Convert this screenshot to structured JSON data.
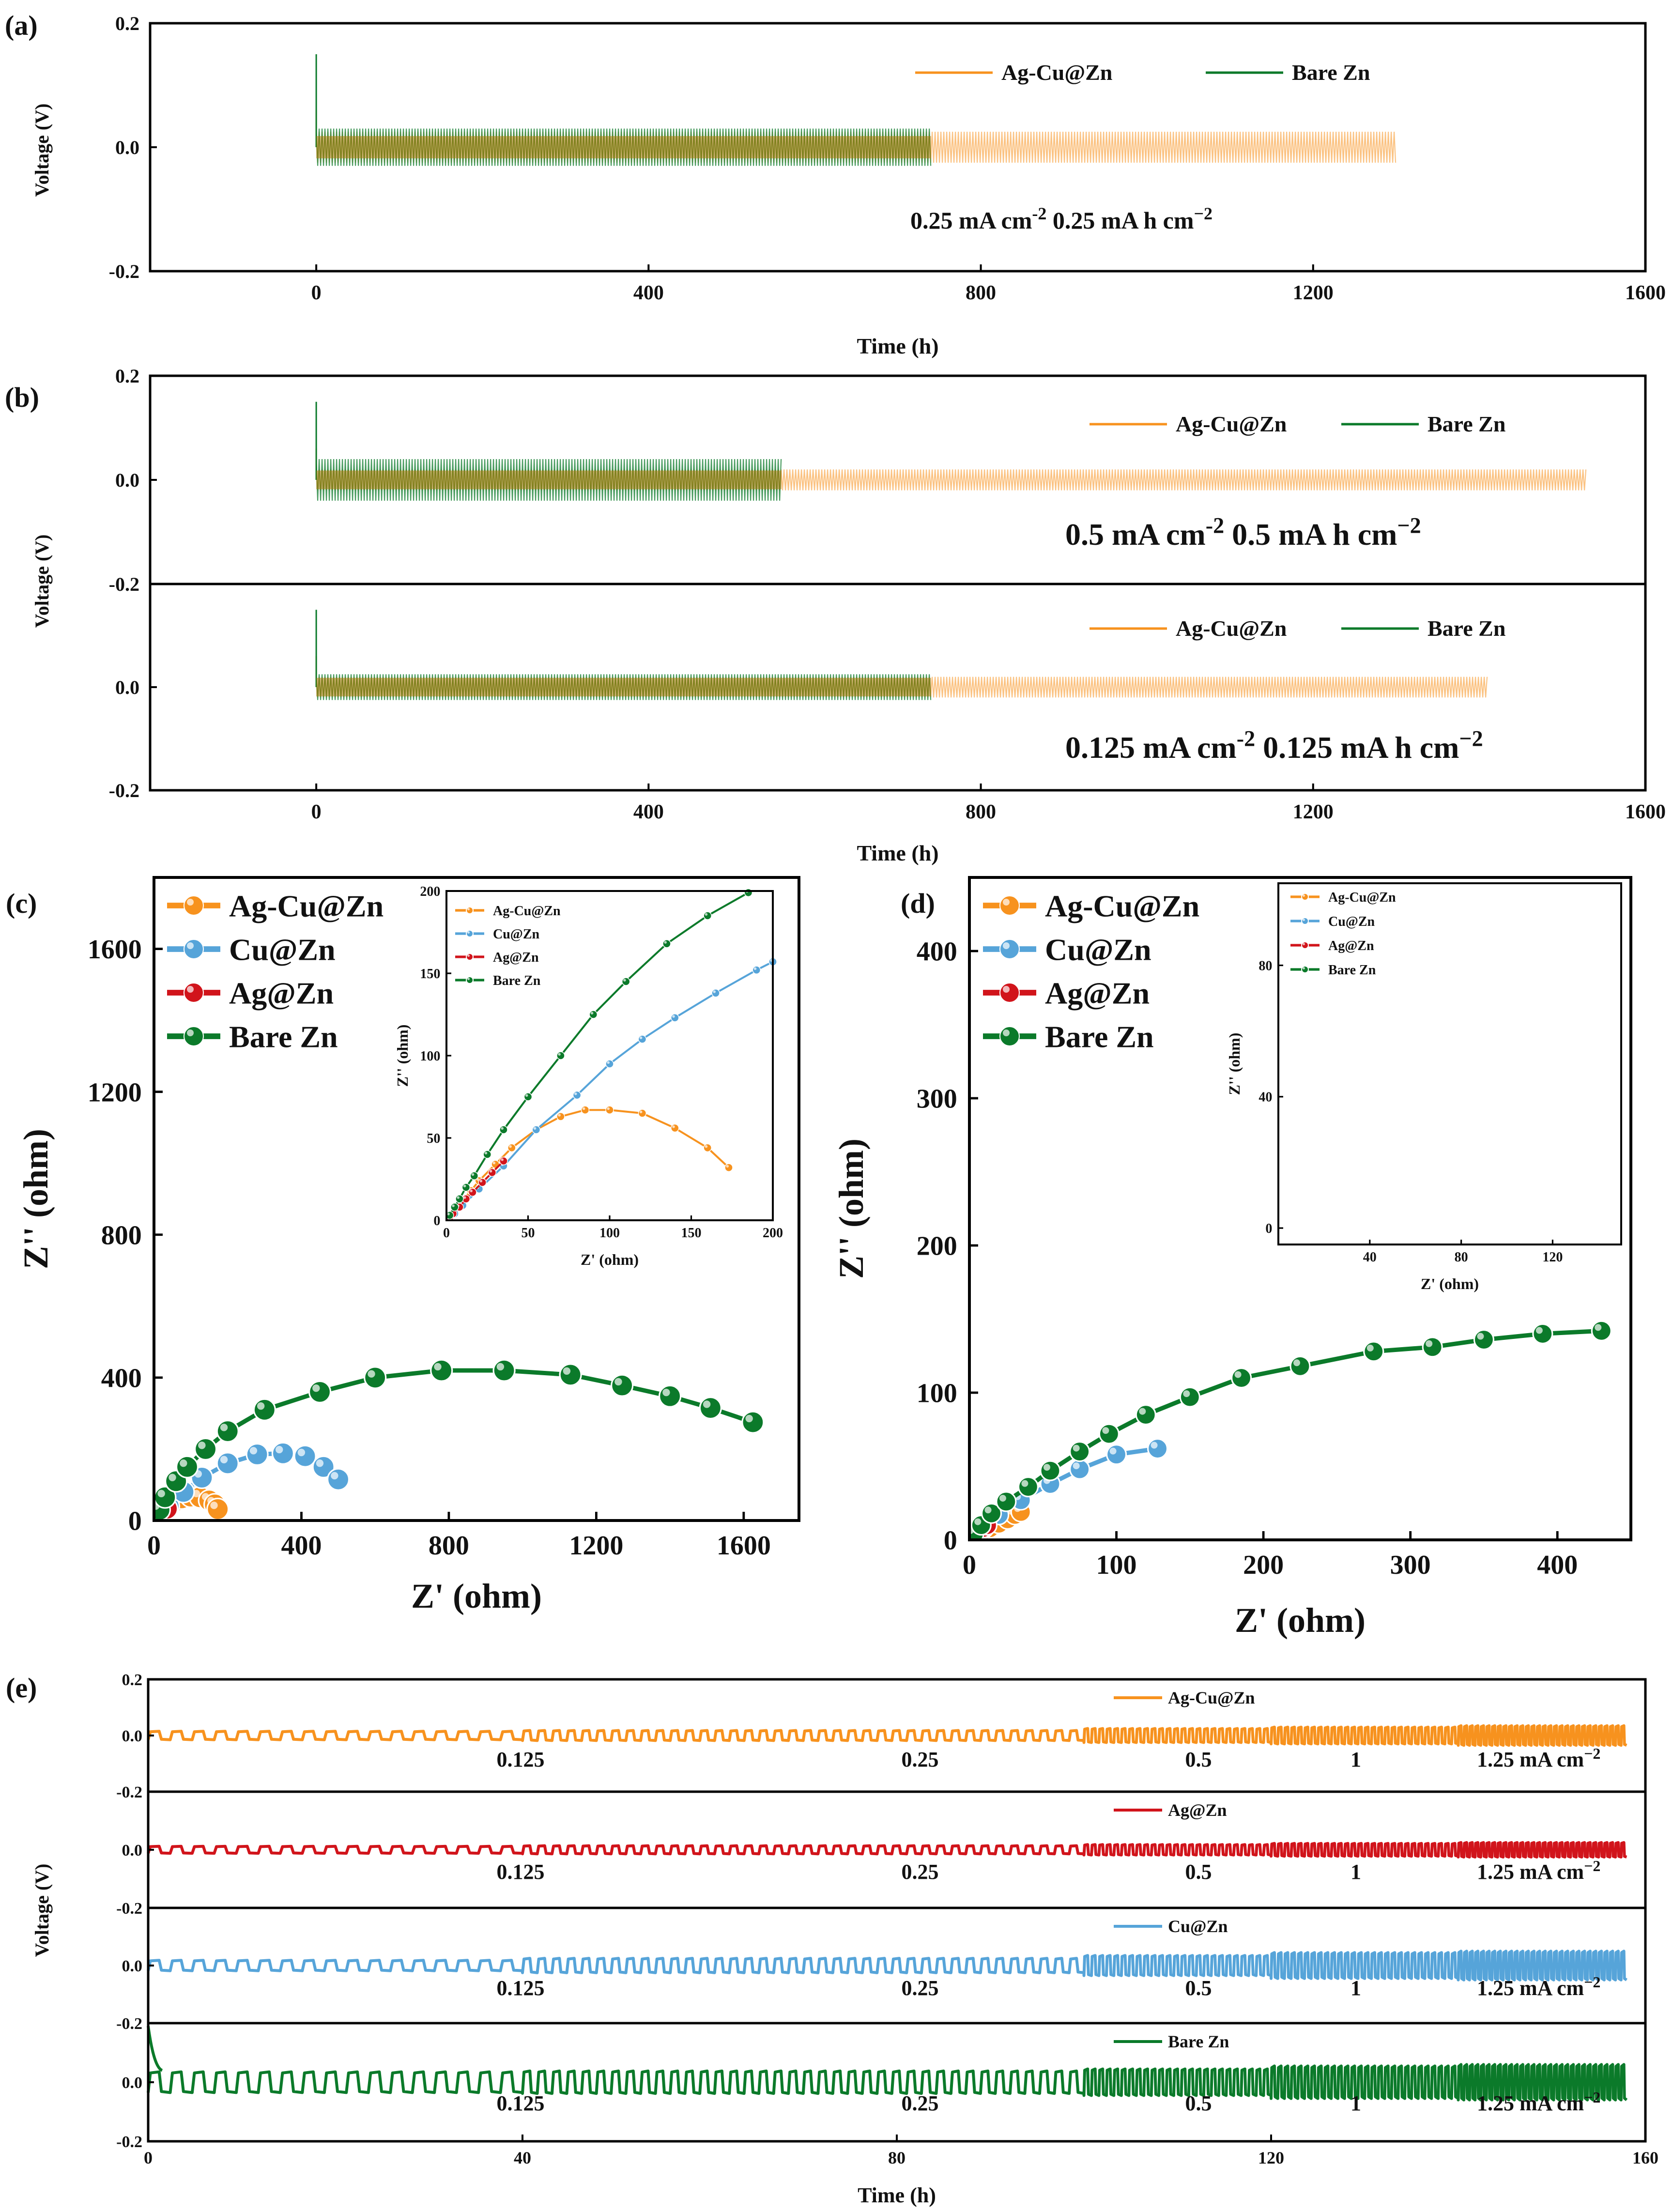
{
  "colors": {
    "orange": "#f7921e",
    "green": "#0b7a2a",
    "blue": "#56a4d9",
    "red": "#d1141b",
    "axis": "#000000"
  },
  "chart_data": [
    {
      "id": "a",
      "panel_label": "(a)",
      "type": "line",
      "xlabel": "Time (h)",
      "ylabel": "Voltage (V)",
      "xlim": [
        -200,
        1600
      ],
      "ylim": [
        -0.2,
        0.2
      ],
      "xticks": [
        "0",
        "400",
        "800",
        "1200",
        "1600"
      ],
      "yticks": [
        "0.2",
        "0.0",
        "-0.2"
      ],
      "conditions": [
        "0.25 mA cm",
        "-2",
        "0.25 mA h cm",
        "−2"
      ],
      "series": [
        {
          "name": "Ag-Cu@Zn",
          "color": "#f7921e",
          "end_h": 1300,
          "overpotential_V": 0.025
        },
        {
          "name": "Bare Zn",
          "color": "#0b7a2a",
          "end_h": 740,
          "overpotential_V": 0.03
        }
      ]
    },
    {
      "id": "b1",
      "panel_label": "(b)",
      "type": "line",
      "ylabel": "Voltage (V)",
      "xlim": [
        -200,
        1600
      ],
      "ylim": [
        -0.2,
        0.2
      ],
      "yticks": [
        "0.2",
        "0.0",
        "-0.2"
      ],
      "conditions": [
        "0.5 mA cm",
        "-2",
        "0.5 mA h cm",
        "−2"
      ],
      "series": [
        {
          "name": "Ag-Cu@Zn",
          "color": "#f7921e",
          "end_h": 1530,
          "overpotential_V": 0.02
        },
        {
          "name": "Bare Zn",
          "color": "#0b7a2a",
          "end_h": 560,
          "overpotential_V": 0.04
        }
      ]
    },
    {
      "id": "b2",
      "type": "line",
      "xlabel": "Time (h)",
      "xlim": [
        -200,
        1600
      ],
      "ylim": [
        -0.2,
        0.2
      ],
      "xticks": [
        "0",
        "400",
        "800",
        "1200",
        "1600"
      ],
      "yticks": [
        "0.0",
        "-0.2"
      ],
      "conditions": [
        "0.125 mA cm",
        "-2",
        "0.125 mA h cm",
        "−2"
      ],
      "series": [
        {
          "name": "Ag-Cu@Zn",
          "color": "#f7921e",
          "end_h": 1410,
          "overpotential_V": 0.02
        },
        {
          "name": "Bare Zn",
          "color": "#0b7a2a",
          "end_h": 740,
          "overpotential_V": 0.025
        }
      ]
    },
    {
      "id": "c",
      "panel_label": "(c)",
      "type": "scatter",
      "xlabel": "Z' (ohm)",
      "ylabel": "Z'' (ohm)",
      "xlim": [
        0,
        1750
      ],
      "ylim": [
        0,
        1800
      ],
      "xticks": [
        "0",
        "400",
        "800",
        "1200",
        "1600"
      ],
      "yticks": [
        "0",
        "400",
        "800",
        "1200",
        "1600"
      ],
      "series": [
        {
          "name": "Ag-Cu@Zn",
          "color": "#f7921e",
          "points": [
            [
              5,
              3
            ],
            [
              10,
              10
            ],
            [
              20,
              22
            ],
            [
              30,
              32
            ],
            [
              40,
              42
            ],
            [
              55,
              52
            ],
            [
              75,
              62
            ],
            [
              100,
              67
            ],
            [
              125,
              65
            ],
            [
              150,
              56
            ],
            [
              165,
              45
            ],
            [
              173,
              32
            ]
          ]
        },
        {
          "name": "Cu@Zn",
          "color": "#56a4d9",
          "points": [
            [
              5,
              3
            ],
            [
              15,
              15
            ],
            [
              40,
              40
            ],
            [
              80,
              80
            ],
            [
              130,
              120
            ],
            [
              200,
              160
            ],
            [
              280,
              185
            ],
            [
              350,
              188
            ],
            [
              410,
              180
            ],
            [
              460,
              150
            ],
            [
              500,
              115
            ]
          ]
        },
        {
          "name": "Ag@Zn",
          "color": "#d1141b",
          "points": [
            [
              5,
              4
            ],
            [
              10,
              9
            ],
            [
              18,
              16
            ],
            [
              26,
              24
            ],
            [
              35,
              33
            ]
          ]
        },
        {
          "name": "Bare Zn",
          "color": "#0b7a2a",
          "points": [
            [
              5,
              5
            ],
            [
              15,
              30
            ],
            [
              30,
              65
            ],
            [
              60,
              110
            ],
            [
              90,
              150
            ],
            [
              140,
              200
            ],
            [
              200,
              250
            ],
            [
              300,
              310
            ],
            [
              450,
              360
            ],
            [
              600,
              400
            ],
            [
              780,
              420
            ],
            [
              950,
              420
            ],
            [
              1130,
              408
            ],
            [
              1270,
              378
            ],
            [
              1400,
              348
            ],
            [
              1510,
              315
            ],
            [
              1625,
              275
            ]
          ]
        }
      ],
      "inset": {
        "xlabel": "Z' (ohm)",
        "ylabel": "Z'' (ohm)",
        "xlim": [
          0,
          200
        ],
        "ylim": [
          0,
          200
        ],
        "xticks": [
          "0",
          "50",
          "100",
          "150",
          "200"
        ],
        "yticks": [
          "0",
          "50",
          "100",
          "150",
          "200"
        ],
        "series": [
          {
            "name": "Ag-Cu@Zn",
            "color": "#f7921e",
            "points": [
              [
                2,
                2
              ],
              [
                5,
                6
              ],
              [
                10,
                12
              ],
              [
                15,
                18
              ],
              [
                20,
                24
              ],
              [
                30,
                34
              ],
              [
                40,
                44
              ],
              [
                55,
                55
              ],
              [
                70,
                63
              ],
              [
                85,
                67
              ],
              [
                100,
                67
              ],
              [
                120,
                65
              ],
              [
                140,
                56
              ],
              [
                160,
                44
              ],
              [
                173,
                32
              ]
            ]
          },
          {
            "name": "Cu@Zn",
            "color": "#56a4d9",
            "points": [
              [
                2,
                1
              ],
              [
                5,
                4
              ],
              [
                10,
                9
              ],
              [
                20,
                19
              ],
              [
                35,
                33
              ],
              [
                55,
                55
              ],
              [
                80,
                76
              ],
              [
                100,
                95
              ],
              [
                120,
                110
              ],
              [
                140,
                123
              ],
              [
                165,
                138
              ],
              [
                190,
                152
              ],
              [
                200,
                157
              ]
            ]
          },
          {
            "name": "Ag@Zn",
            "color": "#d1141b",
            "points": [
              [
                2,
                2
              ],
              [
                4,
                4
              ],
              [
                8,
                8
              ],
              [
                12,
                13
              ],
              [
                16,
                17
              ],
              [
                22,
                23
              ],
              [
                28,
                29
              ],
              [
                35,
                36
              ]
            ]
          },
          {
            "name": "Bare Zn",
            "color": "#0b7a2a",
            "points": [
              [
                2,
                3
              ],
              [
                5,
                8
              ],
              [
                8,
                13
              ],
              [
                12,
                20
              ],
              [
                17,
                27
              ],
              [
                25,
                40
              ],
              [
                35,
                55
              ],
              [
                50,
                75
              ],
              [
                70,
                100
              ],
              [
                90,
                125
              ],
              [
                110,
                145
              ],
              [
                135,
                168
              ],
              [
                160,
                185
              ],
              [
                185,
                199
              ]
            ]
          }
        ]
      }
    },
    {
      "id": "d",
      "panel_label": "(d)",
      "type": "scatter",
      "xlabel": "Z' (ohm)",
      "ylabel": "Z'' (ohm)",
      "xlim": [
        0,
        450
      ],
      "ylim": [
        0,
        450
      ],
      "xticks": [
        "0",
        "100",
        "200",
        "300",
        "400"
      ],
      "yticks": [
        "0",
        "100",
        "200",
        "300",
        "400"
      ],
      "series": [
        {
          "name": "Ag-Cu@Zn",
          "color": "#f7921e",
          "points": [
            [
              3,
              3
            ],
            [
              8,
              5
            ],
            [
              14,
              8
            ],
            [
              20,
              11
            ],
            [
              26,
              14
            ],
            [
              31,
              17
            ],
            [
              35,
              19
            ]
          ]
        },
        {
          "name": "Cu@Zn",
          "color": "#56a4d9",
          "points": [
            [
              3,
              3
            ],
            [
              10,
              8
            ],
            [
              20,
              17
            ],
            [
              35,
              27
            ],
            [
              55,
              38
            ],
            [
              75,
              48
            ],
            [
              100,
              58
            ],
            [
              128,
              62
            ]
          ]
        },
        {
          "name": "Ag@Zn",
          "color": "#d1141b",
          "points": [
            [
              3,
              3
            ],
            [
              6,
              5
            ],
            [
              9,
              8
            ],
            [
              12,
              10
            ]
          ]
        },
        {
          "name": "Bare Zn",
          "color": "#0b7a2a",
          "points": [
            [
              3,
              4
            ],
            [
              8,
              10
            ],
            [
              15,
              18
            ],
            [
              25,
              26
            ],
            [
              40,
              36
            ],
            [
              55,
              47
            ],
            [
              75,
              60
            ],
            [
              95,
              72
            ],
            [
              120,
              85
            ],
            [
              150,
              97
            ],
            [
              185,
              110
            ],
            [
              225,
              118
            ],
            [
              275,
              128
            ],
            [
              315,
              131
            ],
            [
              350,
              136
            ],
            [
              390,
              140
            ],
            [
              430,
              142
            ]
          ]
        }
      ],
      "inset": {
        "xlabel": "Z' (ohm)",
        "ylabel": "Z'' (ohm)",
        "xlim": [
          0,
          150
        ],
        "ylim": [
          -5,
          105
        ],
        "xticks": [
          "40",
          "80",
          "120"
        ],
        "yticks": [
          "0",
          "40",
          "80"
        ],
        "series": [
          {
            "name": "Ag-Cu@Zn",
            "color": "#f7921e",
            "points": [
              [
                2,
                1
              ],
              [
                4,
                3
              ],
              [
                8,
                5
              ],
              [
                12,
                8
              ],
              [
                16,
                10
              ],
              [
                20,
                12
              ],
              [
                24,
                14
              ],
              [
                28,
                16
              ],
              [
                32,
                18
              ],
              [
                35,
                19
              ]
            ]
          },
          {
            "name": "Cu@Zn",
            "color": "#56a4d9",
            "points": [
              [
                2,
                1
              ],
              [
                5,
                4
              ],
              [
                10,
                9
              ],
              [
                15,
                14
              ],
              [
                20,
                19
              ],
              [
                25,
                24
              ],
              [
                30,
                28
              ],
              [
                40,
                35
              ],
              [
                55,
                43
              ],
              [
                75,
                51
              ],
              [
                100,
                58
              ],
              [
                128,
                62
              ]
            ]
          },
          {
            "name": "Ag@Zn",
            "color": "#d1141b",
            "points": [
              [
                2,
                2
              ],
              [
                4,
                4
              ],
              [
                6,
                5
              ],
              [
                8,
                7
              ],
              [
                10,
                8
              ],
              [
                12,
                10
              ]
            ]
          },
          {
            "name": "Bare Zn",
            "color": "#0b7a2a",
            "points": [
              [
                2,
                2
              ],
              [
                5,
                6
              ],
              [
                8,
                10
              ],
              [
                12,
                16
              ],
              [
                16,
                22
              ],
              [
                20,
                27
              ],
              [
                25,
                32
              ],
              [
                30,
                37
              ],
              [
                40,
                47
              ],
              [
                50,
                55
              ],
              [
                65,
                63
              ],
              [
                80,
                72
              ],
              [
                100,
                82
              ],
              [
                120,
                92
              ],
              [
                140,
                100
              ]
            ]
          }
        ]
      }
    },
    {
      "id": "e",
      "panel_label": "(e)",
      "type": "line",
      "xlabel": "Time (h)",
      "ylabel": "Voltage (V)",
      "xlim": [
        0,
        160
      ],
      "ylim": [
        -0.2,
        0.2
      ],
      "xticks": [
        "0",
        "40",
        "80",
        "120",
        "160"
      ],
      "yticks": [
        "0.2",
        "0.0",
        "-0.2"
      ],
      "rate_labels": [
        "0.125",
        "0.25",
        "0.5",
        "1",
        "1.25 mA cm−2"
      ],
      "rate_segments_h": [
        [
          0,
          40
        ],
        [
          40,
          100
        ],
        [
          100,
          120
        ],
        [
          120,
          140
        ],
        [
          140,
          158
        ]
      ],
      "series": [
        {
          "name": "Ag-Cu@Zn",
          "color": "#f7921e",
          "amplitudes_V": [
            0.015,
            0.018,
            0.025,
            0.03,
            0.035
          ]
        },
        {
          "name": "Ag@Zn",
          "color": "#d1141b",
          "amplitudes_V": [
            0.012,
            0.014,
            0.018,
            0.022,
            0.025
          ]
        },
        {
          "name": "Cu@Zn",
          "color": "#56a4d9",
          "amplitudes_V": [
            0.018,
            0.025,
            0.035,
            0.045,
            0.05
          ]
        },
        {
          "name": "Bare Zn",
          "color": "#0b7a2a",
          "amplitudes_V": [
            0.035,
            0.038,
            0.045,
            0.055,
            0.06
          ]
        }
      ]
    }
  ]
}
